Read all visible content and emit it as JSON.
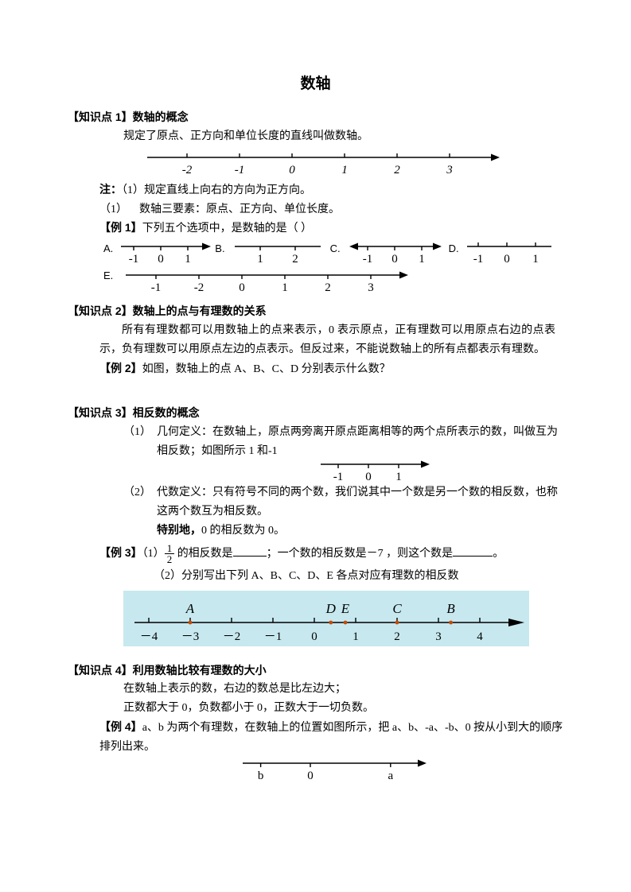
{
  "title": "数轴",
  "k1": {
    "heading": "【知识点 1】数轴的概念",
    "text": "规定了原点、正方向和单位长度的直线叫做数轴。",
    "nl": {
      "ticks": [
        "-2",
        "-1",
        "0",
        "1",
        "2",
        "3"
      ],
      "line_color": "#000000",
      "font": "italic 15px 'Times New Roman',serif",
      "arrow": true,
      "tick_up": true
    },
    "note1_prefix": "注：",
    "note1": "（1）规定直线上向右的方向为正方向。",
    "note2_num": "（1）",
    "note2": "数轴三要素：原点、正方向、单位长度。"
  },
  "ex1": {
    "label": "【例 1】",
    "text": "下列五个选项中，是数轴的是（     ）",
    "choices": {
      "A": {
        "ticks": [
          "-1",
          "0",
          "1"
        ],
        "arrow": true,
        "tick_up": false
      },
      "B": {
        "ticks": [
          "1",
          "2"
        ],
        "arrow": false,
        "tick_up": false
      },
      "C": {
        "ticks": [
          "-1",
          "0",
          "1"
        ],
        "arrow": true,
        "tick_up": false,
        "left_arrow": true
      },
      "D": {
        "ticks": [
          "-1",
          "0",
          "1"
        ],
        "arrow": false,
        "tick_up": true
      },
      "E": {
        "ticks": [
          "-1",
          "-2",
          "0",
          "1",
          "2",
          "3"
        ],
        "arrow": true,
        "tick_up": false
      }
    }
  },
  "k2": {
    "heading": "【知识点 2】数轴上的点与有理数的关系",
    "text": "所有有理数都可以用数轴上的点来表示，0 表示原点，正有理数可以用原点右边的点表示，负有理数可以用原点左边的点表示。但反过来，不能说数轴上的所有点都表示有理数。"
  },
  "ex2": {
    "label": "【例 2】",
    "text": "如图，数轴上的点 A、B、C、D 分别表示什么数？"
  },
  "k3": {
    "heading": "【知识点 3】相反数的概念",
    "item1_num": "（1）",
    "item1": "几何定义：在数轴上，原点两旁离开原点距离相等的两个点所表示的数，叫做互为相反数；如图所示 1 和-1",
    "nl": {
      "ticks": [
        "-1",
        "0",
        "1"
      ],
      "arrow": true,
      "tick_up": false
    },
    "item2_num": "（2）",
    "item2": "代数定义：只有符号不同的两个数，我们说其中一个数是另一个数的相反数，也称这两个数互为相反数。",
    "special_prefix": "特别地，",
    "special_text": "0 的相反数为 0。"
  },
  "ex3": {
    "label": "【例 3】",
    "part1a": "（1）",
    "part1b": " 的相反数是",
    "part1c": "；一个数的相反数是－7 ，则这个数是",
    "part1d": "。",
    "frac_num": "1",
    "frac_den": "2",
    "part2": "（2）分别写出下列 A、B、C、D、E 各点对应有理数的相反数",
    "img": {
      "bg": "#c7e8ef",
      "line_color": "#000000",
      "tick_color": "#000000",
      "dot_color": "#c94a00",
      "ticks": [
        "－4",
        "－3",
        "－2",
        "－1",
        "0",
        "1",
        "2",
        "3",
        "4"
      ],
      "tick_font": "15px 'Times New Roman', serif",
      "label_font": "italic 17px 'Times New Roman', serif",
      "points": [
        {
          "label": "A",
          "x": -3
        },
        {
          "label": "D",
          "x": 0.4
        },
        {
          "label": "E",
          "x": 0.75
        },
        {
          "label": "C",
          "x": 2
        },
        {
          "label": "B",
          "x": 3.3
        }
      ]
    }
  },
  "k4": {
    "heading": "【知识点 4】利用数轴比较有理数的大小",
    "line1": "在数轴上表示的数，右边的数总是比左边大；",
    "line2": "正数都大于 0，负数都小于 0，正数大于一切负数。"
  },
  "ex4": {
    "label": "【例 4】",
    "text": "a、b 为两个有理数，在数轴上的位置如图所示，把 a、b、-a、-b、0 按从小到大的顺序排列出来。",
    "nl": {
      "labels": [
        "b",
        "0",
        "a"
      ],
      "positions": [
        -1.3,
        0,
        2.1
      ],
      "arrow": true,
      "font": "15px 'Times New Roman', serif"
    }
  }
}
